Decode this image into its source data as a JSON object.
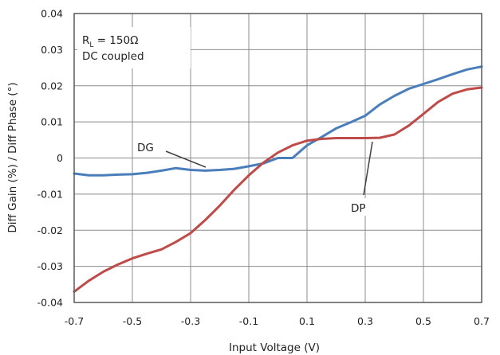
{
  "chart_data": {
    "type": "line",
    "title": "",
    "xlabel": "Input Voltage (V)",
    "ylabel": "Diff Gain (%) / Diff Phase (°)",
    "xlim": [
      -0.7,
      0.7
    ],
    "ylim": [
      -0.04,
      0.04
    ],
    "xticks": [
      "-0.7",
      "-0.5",
      "-0.3",
      "-0.1",
      "0.1",
      "0.3",
      "0.5",
      "0.7"
    ],
    "yticks": [
      "-0.04",
      "-0.03",
      "-0.02",
      "-0.01",
      "0",
      "0.01",
      "0.02",
      "0.03",
      "0.04"
    ],
    "grid": true,
    "series": [
      {
        "name": "DG",
        "color": "#4a7ebb",
        "x": [
          -0.7,
          -0.65,
          -0.6,
          -0.55,
          -0.5,
          -0.45,
          -0.4,
          -0.35,
          -0.3,
          -0.25,
          -0.2,
          -0.15,
          -0.1,
          -0.05,
          0.0,
          0.05,
          0.1,
          0.15,
          0.2,
          0.25,
          0.3,
          0.35,
          0.4,
          0.45,
          0.5,
          0.55,
          0.6,
          0.65,
          0.7
        ],
        "values": [
          -0.0043,
          -0.0048,
          -0.0048,
          -0.0046,
          -0.0045,
          -0.0041,
          -0.0035,
          -0.0028,
          -0.0033,
          -0.0035,
          -0.0033,
          -0.003,
          -0.0023,
          -0.0015,
          0.0,
          0.0,
          0.0035,
          0.0058,
          0.0082,
          0.0099,
          0.0117,
          0.0148,
          0.0172,
          0.0192,
          0.0205,
          0.0218,
          0.0232,
          0.0245,
          0.0253
        ]
      },
      {
        "name": "DP",
        "color": "#be4b48",
        "x": [
          -0.7,
          -0.65,
          -0.6,
          -0.55,
          -0.5,
          -0.45,
          -0.4,
          -0.35,
          -0.3,
          -0.25,
          -0.2,
          -0.15,
          -0.1,
          -0.05,
          0.0,
          0.05,
          0.1,
          0.15,
          0.2,
          0.25,
          0.3,
          0.35,
          0.4,
          0.45,
          0.5,
          0.55,
          0.6,
          0.65,
          0.7
        ],
        "values": [
          -0.037,
          -0.034,
          -0.0315,
          -0.0295,
          -0.0278,
          -0.0265,
          -0.0253,
          -0.0232,
          -0.0208,
          -0.0172,
          -0.0132,
          -0.0088,
          -0.0048,
          -0.0013,
          0.0015,
          0.0035,
          0.0048,
          0.0053,
          0.0055,
          0.0055,
          0.0055,
          0.0056,
          0.0065,
          0.009,
          0.0122,
          0.0155,
          0.0178,
          0.019,
          0.0195
        ]
      }
    ],
    "annotations": {
      "conditions_prefix": "R",
      "conditions_sub": "L",
      "conditions_suffix": " = 150Ω",
      "conditions_line2": "DC coupled",
      "dg_label": "DG",
      "dp_label": "DP"
    }
  }
}
